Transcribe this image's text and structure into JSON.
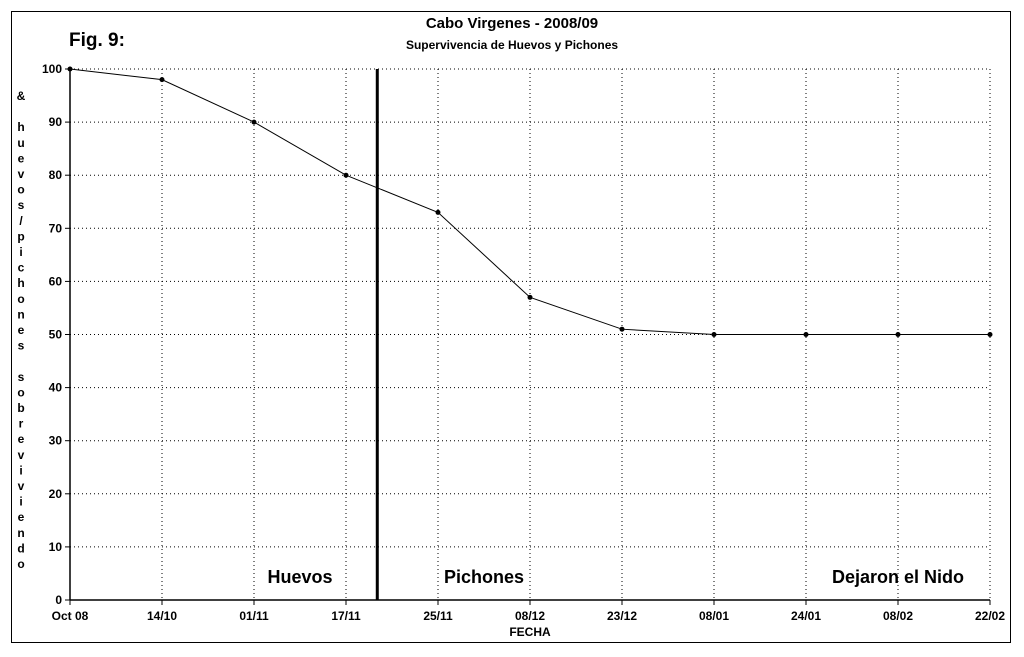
{
  "figure_label": "Fig. 9:",
  "chart_data": {
    "type": "line",
    "title": "Cabo Virgenes - 2008/09",
    "subtitle": "Supervivencia de Huevos y Pichones",
    "xlabel": "FECHA",
    "ylabel": "& huevos/pichones sobreviviendo",
    "categories": [
      "Oct 08",
      "14/10",
      "01/11",
      "17/11",
      "25/11",
      "08/12",
      "23/12",
      "08/01",
      "24/01",
      "08/02",
      "22/02"
    ],
    "series": [
      {
        "values": [
          100,
          98,
          90,
          80,
          73,
          57,
          51,
          50,
          50,
          50,
          50
        ]
      }
    ],
    "ylim": [
      0,
      100
    ],
    "yticks": [
      0,
      10,
      20,
      30,
      40,
      50,
      60,
      70,
      80,
      90,
      100
    ],
    "grid": true,
    "grid_style": "dotted",
    "divider_x": 3.34,
    "annotations": [
      "Huevos",
      "Pichones",
      "Dejaron el Nido"
    ],
    "colors": {
      "line": "#000000",
      "grid": "#000000",
      "background": "#ffffff"
    }
  }
}
